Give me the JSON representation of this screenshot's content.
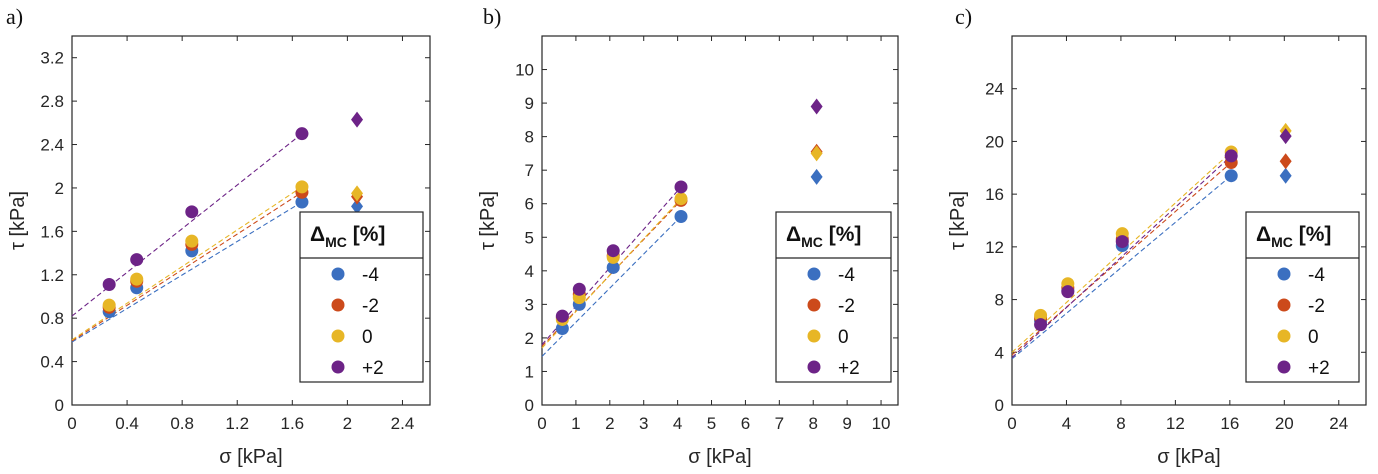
{
  "colors": {
    "-4": "#3b6fc0",
    "-2": "#cc4a1b",
    "0": "#e7b626",
    "+2": "#6d2387",
    "axis": "#262626"
  },
  "chart_data": [
    {
      "type": "scatter",
      "panel_label": "a)",
      "xlabel": "σ [kPa]",
      "ylabel": "τ [kPa]",
      "xlim": [
        0,
        2.6
      ],
      "ylim": [
        0,
        3.4
      ],
      "xticks": [
        "0",
        "0.4",
        "0.8",
        "1.2",
        "1.6",
        "2",
        "2.4"
      ],
      "yticks": [
        "0",
        "0.4",
        "0.8",
        "1.2",
        "1.6",
        "2",
        "2.4",
        "2.8",
        "3.2"
      ],
      "grid": false,
      "legend": {
        "title_main": "Δ",
        "title_sub": "MC",
        "title_unit": " [%]",
        "entries": [
          "-4",
          "-2",
          "0",
          "+2"
        ],
        "position": "bottom-right"
      },
      "series": [
        {
          "name": "-4",
          "points": [
            [
              0.27,
              0.86
            ],
            [
              0.47,
              1.08
            ],
            [
              0.87,
              1.42
            ],
            [
              1.67,
              1.87
            ]
          ],
          "diamond": [
            2.07,
            1.83
          ],
          "fit_start": [
            0,
            0.58
          ],
          "fit_end": [
            1.67,
            1.87
          ]
        },
        {
          "name": "-2",
          "points": [
            [
              0.27,
              0.9
            ],
            [
              0.47,
              1.14
            ],
            [
              0.87,
              1.48
            ],
            [
              1.67,
              1.96
            ]
          ],
          "diamond": [
            2.07,
            1.92
          ],
          "fit_start": [
            0,
            0.59
          ],
          "fit_end": [
            1.67,
            1.96
          ]
        },
        {
          "name": "0",
          "points": [
            [
              0.27,
              0.92
            ],
            [
              0.47,
              1.16
            ],
            [
              0.87,
              1.51
            ],
            [
              1.67,
              2.01
            ]
          ],
          "diamond": [
            2.07,
            1.95
          ],
          "fit_start": [
            0,
            0.6
          ],
          "fit_end": [
            1.67,
            2.01
          ]
        },
        {
          "name": "+2",
          "points": [
            [
              0.27,
              1.11
            ],
            [
              0.47,
              1.34
            ],
            [
              0.87,
              1.78
            ],
            [
              1.67,
              2.5
            ]
          ],
          "diamond": [
            2.07,
            2.63
          ],
          "fit_start": [
            0,
            0.82
          ],
          "fit_end": [
            1.67,
            2.5
          ]
        }
      ]
    },
    {
      "type": "scatter",
      "panel_label": "b)",
      "xlabel": "σ [kPa]",
      "ylabel": "τ [kPa]",
      "xlim": [
        0,
        10.5
      ],
      "ylim": [
        0,
        11
      ],
      "xticks": [
        "0",
        "1",
        "2",
        "3",
        "4",
        "5",
        "6",
        "7",
        "8",
        "9",
        "10"
      ],
      "yticks": [
        "0",
        "1",
        "2",
        "3",
        "4",
        "5",
        "6",
        "7",
        "8",
        "9",
        "10"
      ],
      "grid": false,
      "legend": {
        "title_main": "Δ",
        "title_sub": "MC",
        "title_unit": " [%]",
        "entries": [
          "-4",
          "-2",
          "0",
          "+2"
        ],
        "position": "bottom-right"
      },
      "series": [
        {
          "name": "-4",
          "points": [
            [
              0.6,
              2.28
            ],
            [
              1.1,
              3.0
            ],
            [
              2.1,
              4.1
            ],
            [
              4.1,
              5.62
            ]
          ],
          "diamond": [
            8.1,
            6.8
          ],
          "fit_start": [
            0,
            1.45
          ],
          "fit_end": [
            4.1,
            5.62
          ]
        },
        {
          "name": "-2",
          "points": [
            [
              0.6,
              2.6
            ],
            [
              1.1,
              3.3
            ],
            [
              2.1,
              4.45
            ],
            [
              4.1,
              6.1
            ]
          ],
          "diamond": [
            8.1,
            7.55
          ],
          "fit_start": [
            0,
            1.75
          ],
          "fit_end": [
            4.1,
            6.1
          ]
        },
        {
          "name": "0",
          "points": [
            [
              0.6,
              2.55
            ],
            [
              1.1,
              3.2
            ],
            [
              2.1,
              4.4
            ],
            [
              4.1,
              6.15
            ]
          ],
          "diamond": [
            8.1,
            7.5
          ],
          "fit_start": [
            0,
            1.7
          ],
          "fit_end": [
            4.1,
            6.15
          ]
        },
        {
          "name": "+2",
          "points": [
            [
              0.6,
              2.65
            ],
            [
              1.1,
              3.45
            ],
            [
              2.1,
              4.6
            ],
            [
              4.1,
              6.5
            ]
          ],
          "diamond": [
            8.1,
            8.9
          ],
          "fit_start": [
            0,
            1.8
          ],
          "fit_end": [
            4.1,
            6.5
          ]
        }
      ]
    },
    {
      "type": "scatter",
      "panel_label": "c)",
      "xlabel": "σ [kPa]",
      "ylabel": "τ [kPa]",
      "xlim": [
        0,
        26
      ],
      "ylim": [
        0,
        28
      ],
      "xticks": [
        "0",
        "4",
        "8",
        "12",
        "16",
        "20",
        "24"
      ],
      "yticks": [
        "0",
        "4",
        "8",
        "12",
        "16",
        "20",
        "24"
      ],
      "grid": false,
      "legend": {
        "title_main": "Δ",
        "title_sub": "MC",
        "title_unit": " [%]",
        "entries": [
          "-4",
          "-2",
          "0",
          "+2"
        ],
        "position": "bottom-right"
      },
      "series": [
        {
          "name": "-4",
          "points": [
            [
              2.1,
              6.4
            ],
            [
              4.1,
              8.7
            ],
            [
              8.1,
              12.1
            ],
            [
              16.1,
              17.4
            ]
          ],
          "diamond": [
            20.1,
            17.4
          ],
          "fit_start": [
            0,
            3.5
          ],
          "fit_end": [
            16.1,
            17.4
          ]
        },
        {
          "name": "-2",
          "points": [
            [
              2.1,
              6.6
            ],
            [
              4.1,
              8.9
            ],
            [
              8.1,
              12.6
            ],
            [
              16.1,
              18.4
            ]
          ],
          "diamond": [
            20.1,
            18.5
          ],
          "fit_start": [
            0,
            3.8
          ],
          "fit_end": [
            16.1,
            18.4
          ]
        },
        {
          "name": "0",
          "points": [
            [
              2.1,
              6.8
            ],
            [
              4.1,
              9.2
            ],
            [
              8.1,
              13.0
            ],
            [
              16.1,
              19.2
            ]
          ],
          "diamond": [
            20.1,
            20.8
          ],
          "fit_start": [
            0,
            4.0
          ],
          "fit_end": [
            16.1,
            19.2
          ]
        },
        {
          "name": "+2",
          "points": [
            [
              2.1,
              6.1
            ],
            [
              4.1,
              8.6
            ],
            [
              8.1,
              12.4
            ],
            [
              16.1,
              18.9
            ]
          ],
          "diamond": [
            20.1,
            20.4
          ],
          "fit_start": [
            0,
            3.6
          ],
          "fit_end": [
            16.1,
            18.9
          ]
        }
      ]
    }
  ]
}
